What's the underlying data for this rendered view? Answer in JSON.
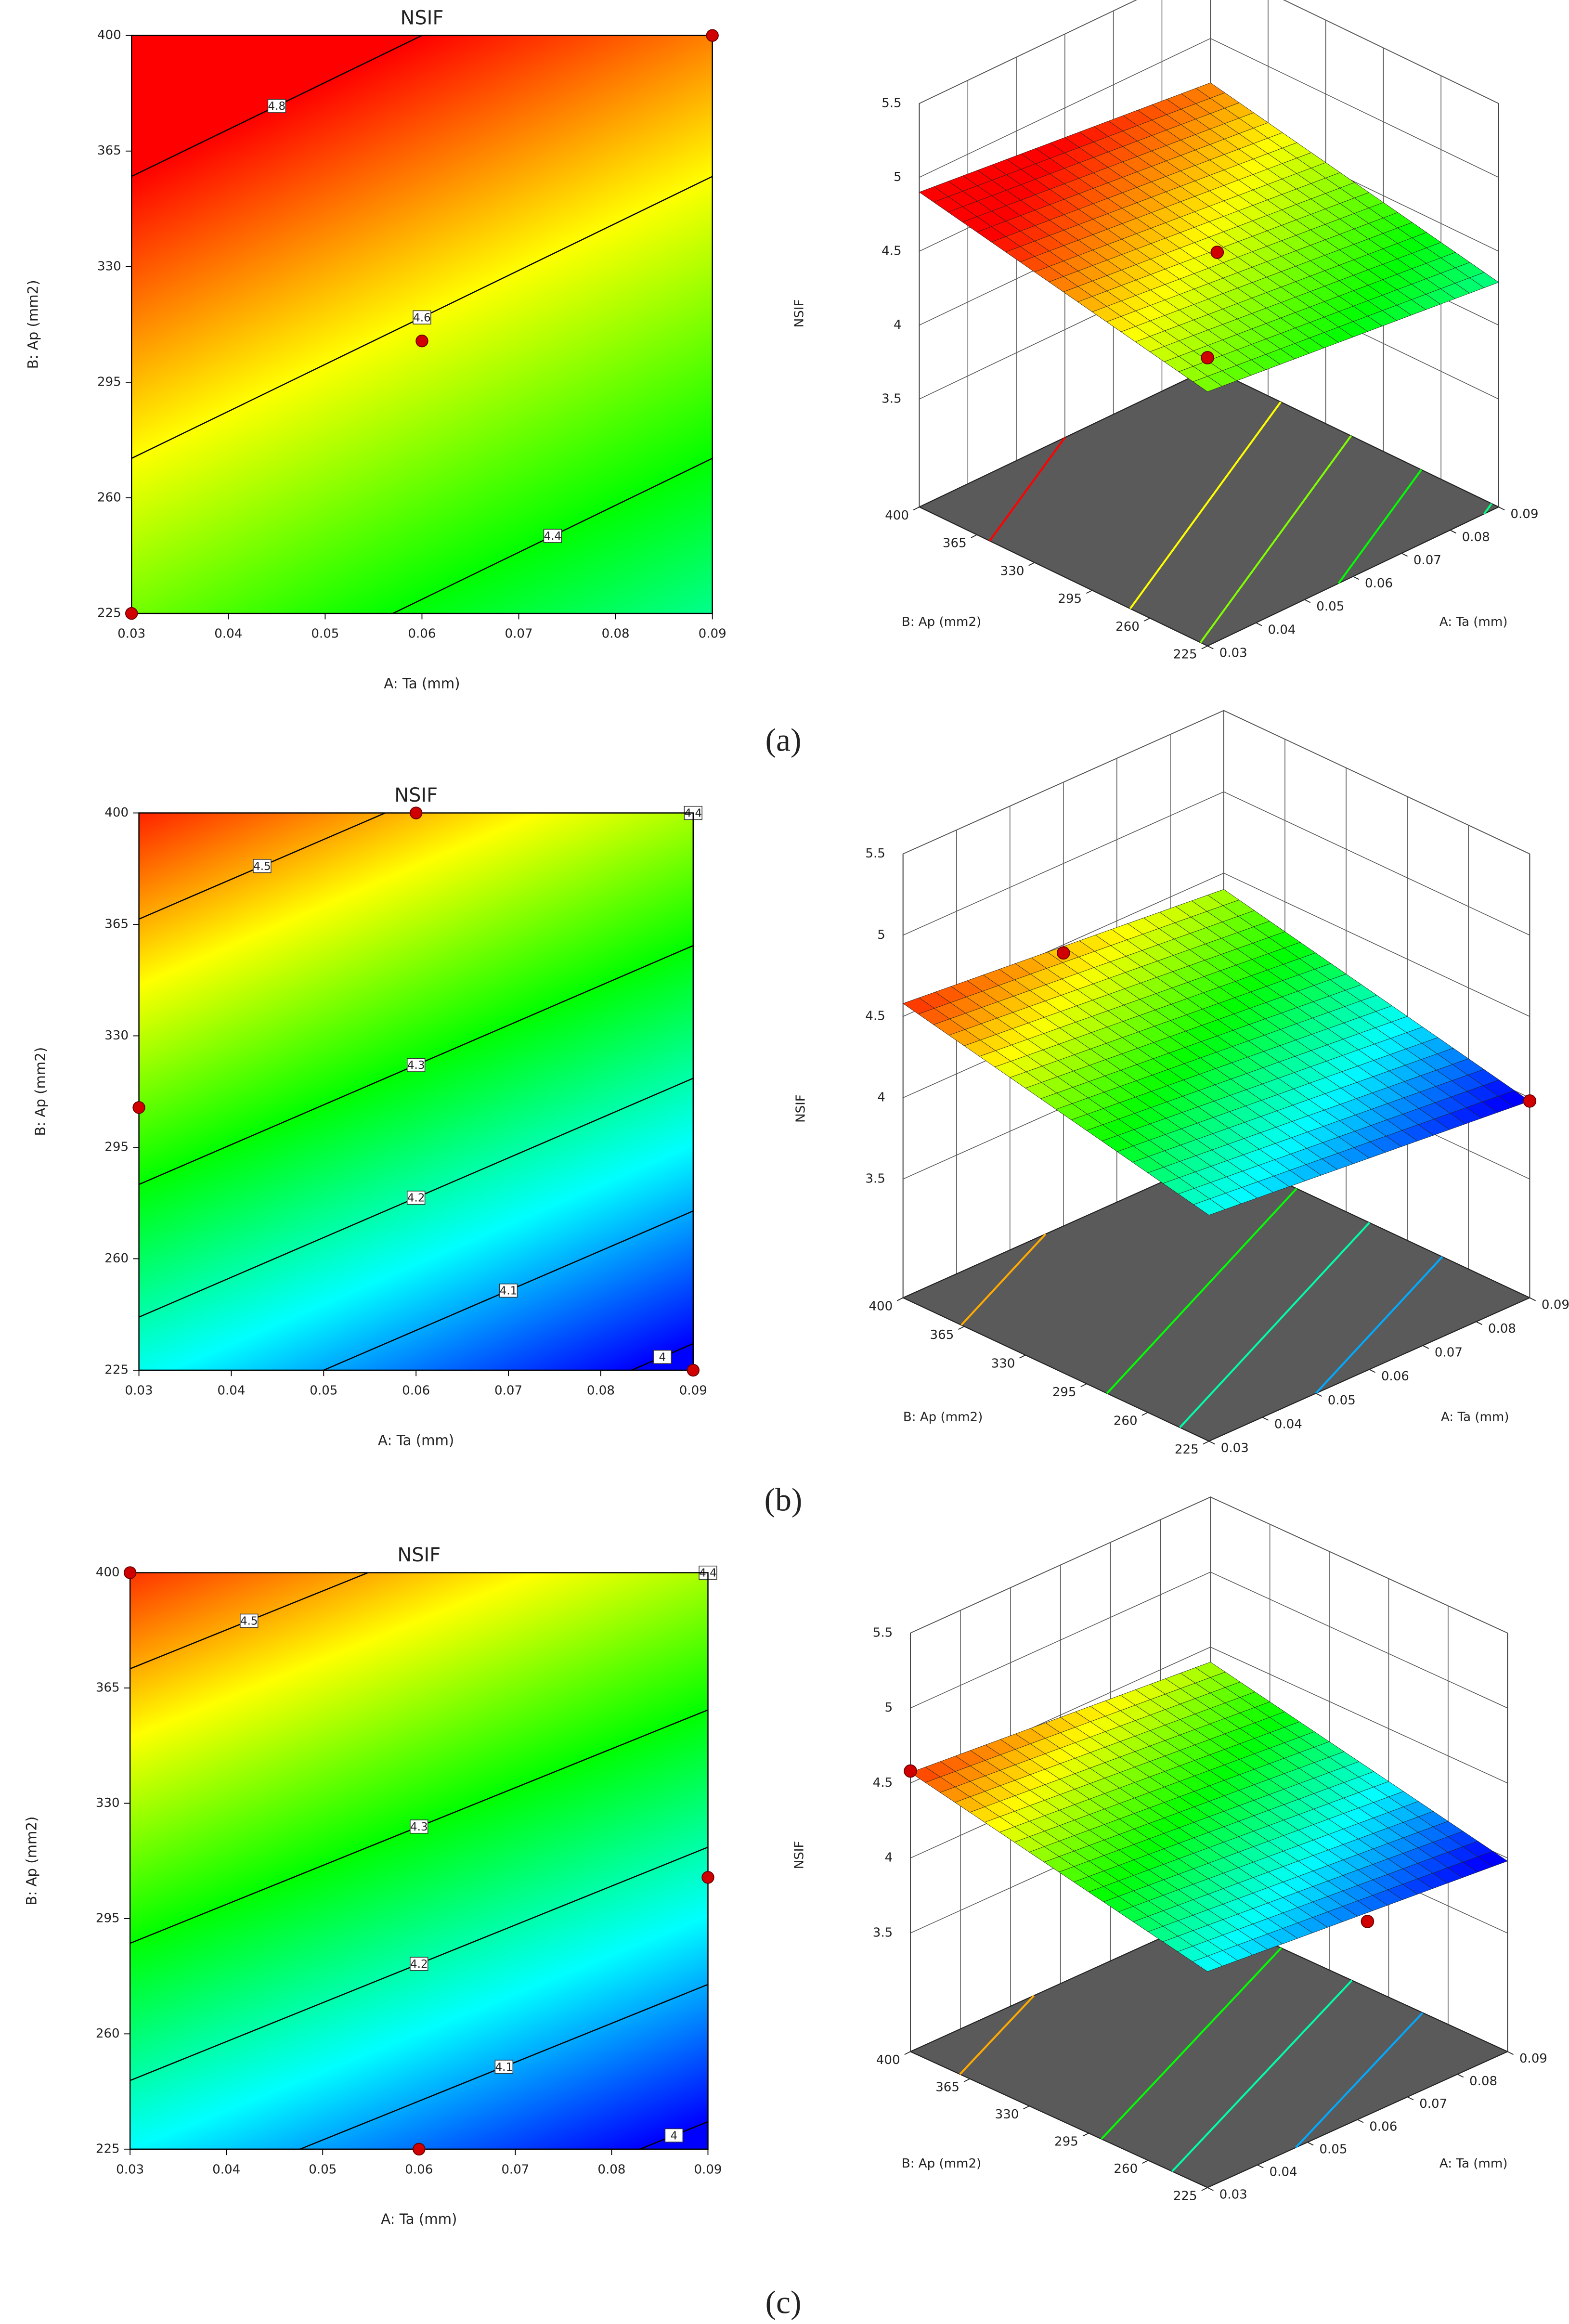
{
  "chart_data": [
    {
      "type": "contour",
      "title": "NSIF",
      "caption": "(a)",
      "xlabel": "A: Ta (mm)",
      "ylabel": "B: Ap (mm2)",
      "xlim": [
        0.03,
        0.09
      ],
      "ylim": [
        225,
        400
      ],
      "xticks": [
        0.03,
        0.04,
        0.05,
        0.06,
        0.07,
        0.08,
        0.09
      ],
      "yticks": [
        225,
        260,
        295,
        330,
        365,
        400
      ],
      "z": [
        [
          4.49,
          4.29
        ],
        [
          4.9,
          4.7
        ]
      ],
      "levels": [
        4.4,
        4.6,
        4.8
      ],
      "color_range": [
        4.0,
        4.8
      ],
      "colormap": [
        "#0000ff",
        "#00ffff",
        "#00ff00",
        "#ffff00",
        "#ff0000"
      ],
      "points": {
        "x": [
          0.03,
          0.09,
          0.06
        ],
        "y": [
          225,
          400,
          307.5
        ]
      }
    },
    {
      "type": "surface",
      "zlabel": "NSIF",
      "xlabel": "A: Ta (mm)",
      "ylabel": "B: Ap (mm2)",
      "xlim": [
        0.03,
        0.09
      ],
      "ylim": [
        225,
        400
      ],
      "zlim": [
        2.77,
        5.5
      ],
      "xticks": [
        0.03,
        0.04,
        0.05,
        0.06,
        0.07,
        0.08,
        0.09
      ],
      "yticks": [
        225,
        260,
        295,
        330,
        365,
        400
      ],
      "zticks": [
        3.5,
        4,
        4.5,
        5,
        5.5
      ],
      "z": [
        [
          4.49,
          4.29
        ],
        [
          4.9,
          4.7
        ]
      ],
      "levels": [
        4.3,
        4.4,
        4.5,
        4.6,
        4.7,
        4.8
      ],
      "color_range": [
        4.0,
        4.8
      ],
      "colormap": [
        "#0000ff",
        "#00ffff",
        "#00ff00",
        "#ffff00",
        "#ff0000"
      ],
      "points": {
        "x": [
          0.06,
          0.03
        ],
        "y": [
          307.5,
          225
        ],
        "z": [
          4.52,
          4.72
        ]
      }
    },
    {
      "type": "contour",
      "title": "NSIF",
      "caption": "(b)",
      "xlabel": "A: Ta (mm)",
      "ylabel": "B: Ap (mm2)",
      "xlim": [
        0.03,
        0.09
      ],
      "ylim": [
        225,
        400
      ],
      "xticks": [
        0.03,
        0.04,
        0.05,
        0.06,
        0.07,
        0.08,
        0.09
      ],
      "yticks": [
        225,
        260,
        295,
        330,
        365,
        400
      ],
      "z": [
        [
          4.16,
          3.98
        ],
        [
          4.58,
          4.4
        ]
      ],
      "levels": [
        4,
        4.1,
        4.2,
        4.3,
        4.4,
        4.5
      ],
      "color_range": [
        4.0,
        4.6
      ],
      "colormap": [
        "#0000ff",
        "#00ffff",
        "#00ff00",
        "#ffff00",
        "#ff0000"
      ],
      "points": {
        "x": [
          0.06,
          0.03,
          0.09
        ],
        "y": [
          400,
          307.5,
          225
        ]
      }
    },
    {
      "type": "surface",
      "zlabel": "NSIF",
      "xlabel": "A: Ta (mm)",
      "ylabel": "B: Ap (mm2)",
      "xlim": [
        0.03,
        0.09
      ],
      "ylim": [
        225,
        400
      ],
      "zlim": [
        2.77,
        5.5
      ],
      "xticks": [
        0.03,
        0.04,
        0.05,
        0.06,
        0.07,
        0.08,
        0.09
      ],
      "yticks": [
        225,
        260,
        295,
        330,
        365,
        400
      ],
      "zticks": [
        3.5,
        4,
        4.5,
        5,
        5.5
      ],
      "z": [
        [
          4.16,
          3.98
        ],
        [
          4.58,
          4.4
        ]
      ],
      "levels": [
        4.1,
        4.2,
        4.3,
        4.4,
        4.5
      ],
      "color_range": [
        4.0,
        4.6
      ],
      "colormap": [
        "#0000ff",
        "#00ffff",
        "#00ff00",
        "#ffff00",
        "#ff0000"
      ],
      "points": {
        "x": [
          0.06,
          0.09
        ],
        "y": [
          400,
          225
        ],
        "z": [
          4.45,
          3.98
        ]
      }
    },
    {
      "type": "contour",
      "title": "NSIF",
      "caption": "(c)",
      "xlabel": "A: Ta (mm)",
      "ylabel": "B: Ap (mm2)",
      "xlim": [
        0.03,
        0.09
      ],
      "ylim": [
        225,
        400
      ],
      "xticks": [
        0.03,
        0.04,
        0.05,
        0.06,
        0.07,
        0.08,
        0.09
      ],
      "yticks": [
        225,
        260,
        295,
        330,
        365,
        400
      ],
      "z": [
        [
          4.15,
          3.98
        ],
        [
          4.57,
          4.4
        ]
      ],
      "levels": [
        4,
        4.1,
        4.2,
        4.3,
        4.4,
        4.5
      ],
      "color_range": [
        4.0,
        4.6
      ],
      "colormap": [
        "#0000ff",
        "#00ffff",
        "#00ff00",
        "#ffff00",
        "#ff0000"
      ],
      "points": {
        "x": [
          0.03,
          0.09,
          0.06
        ],
        "y": [
          400,
          307.5,
          225
        ]
      }
    },
    {
      "type": "surface",
      "zlabel": "NSIF",
      "xlabel": "A: Ta (mm)",
      "ylabel": "B: Ap (mm2)",
      "xlim": [
        0.03,
        0.09
      ],
      "ylim": [
        225,
        400
      ],
      "zlim": [
        2.71,
        5.5
      ],
      "xticks": [
        0.03,
        0.04,
        0.05,
        0.06,
        0.07,
        0.08,
        0.09
      ],
      "yticks": [
        225,
        260,
        295,
        330,
        365,
        400
      ],
      "zticks": [
        3.5,
        4,
        4.5,
        5,
        5.5
      ],
      "z": [
        [
          4.15,
          3.98
        ],
        [
          4.57,
          4.4
        ]
      ],
      "levels": [
        4.1,
        4.2,
        4.3,
        4.4,
        4.5
      ],
      "color_range": [
        4.0,
        4.6
      ],
      "colormap": [
        "#0000ff",
        "#00ffff",
        "#00ff00",
        "#ffff00",
        "#ff0000"
      ],
      "points": {
        "x": [
          0.03,
          0.09
        ],
        "y": [
          400,
          307.5
        ],
        "z": [
          4.58,
          3.15
        ]
      }
    }
  ]
}
